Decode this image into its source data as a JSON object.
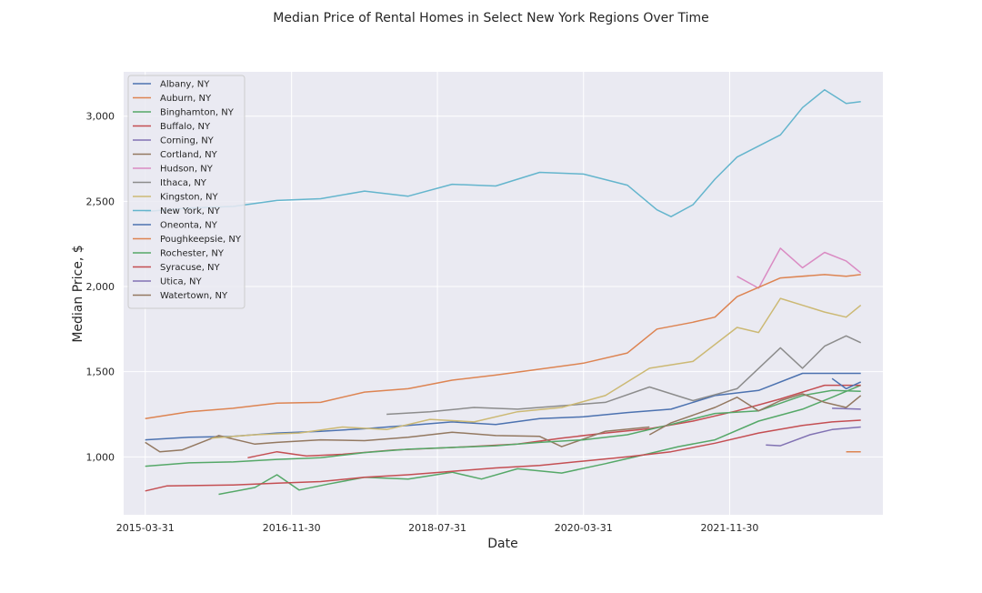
{
  "chart_data": {
    "type": "line",
    "title": "Median Price of Rental Homes in Select New York Regions Over Time",
    "xlabel": "Date",
    "ylabel": "Median Price, $",
    "x_ticks": [
      "2015-03-31",
      "2016-11-30",
      "2018-07-31",
      "2020-03-31",
      "2021-11-30"
    ],
    "y_ticks": [
      1000,
      1500,
      2000,
      2500,
      3000
    ],
    "y_tick_labels": [
      "1,000",
      "1,500",
      "2,000",
      "2,500",
      "3,000"
    ],
    "xlim": [
      "2014-12-31",
      "2023-08-31"
    ],
    "ylim": [
      660,
      3260
    ],
    "grid": true,
    "legend_position": "upper-left",
    "series": [
      {
        "name": "Albany, NY",
        "color": "#4c72b0",
        "points": [
          [
            "2015-03-31",
            1100
          ],
          [
            "2015-09-30",
            1115
          ],
          [
            "2016-03-31",
            1120
          ],
          [
            "2016-09-30",
            1140
          ],
          [
            "2017-03-31",
            1150
          ],
          [
            "2017-09-30",
            1165
          ],
          [
            "2018-03-31",
            1185
          ],
          [
            "2018-09-30",
            1205
          ],
          [
            "2019-03-31",
            1190
          ],
          [
            "2019-09-30",
            1225
          ],
          [
            "2020-03-31",
            1235
          ],
          [
            "2020-09-30",
            1260
          ],
          [
            "2021-03-31",
            1280
          ],
          [
            "2021-09-30",
            1360
          ],
          [
            "2022-03-31",
            1390
          ],
          [
            "2022-09-30",
            1490
          ],
          [
            "2023-01-31",
            1490
          ],
          [
            "2023-05-31",
            1490
          ]
        ]
      },
      {
        "name": "Auburn, NY",
        "color": "#dd8452",
        "points": [
          [
            "2023-03-31",
            1030
          ],
          [
            "2023-05-31",
            1030
          ]
        ]
      },
      {
        "name": "Binghamton, NY",
        "color": "#55a868",
        "points": [
          [
            "2016-01-31",
            780
          ],
          [
            "2016-06-30",
            820
          ],
          [
            "2016-09-30",
            895
          ],
          [
            "2016-12-31",
            805
          ],
          [
            "2017-04-30",
            840
          ],
          [
            "2017-09-30",
            880
          ],
          [
            "2018-03-31",
            870
          ],
          [
            "2018-09-30",
            910
          ],
          [
            "2019-01-31",
            870
          ],
          [
            "2019-06-30",
            930
          ],
          [
            "2019-12-31",
            905
          ],
          [
            "2020-06-30",
            960
          ],
          [
            "2020-12-31",
            1020
          ],
          [
            "2021-04-30",
            1060
          ],
          [
            "2021-09-30",
            1100
          ],
          [
            "2022-03-31",
            1210
          ],
          [
            "2022-09-30",
            1280
          ],
          [
            "2023-01-31",
            1350
          ],
          [
            "2023-05-31",
            1420
          ]
        ]
      },
      {
        "name": "Buffalo, NY",
        "color": "#c44e52",
        "points": [
          [
            "2016-05-31",
            995
          ],
          [
            "2016-09-30",
            1030
          ],
          [
            "2017-01-31",
            1005
          ],
          [
            "2017-06-30",
            1015
          ],
          [
            "2018-01-31",
            1040
          ],
          [
            "2018-09-30",
            1055
          ],
          [
            "2019-06-30",
            1075
          ],
          [
            "2019-12-31",
            1110
          ],
          [
            "2020-06-30",
            1140
          ],
          [
            "2020-12-31",
            1165
          ],
          [
            "2021-06-30",
            1210
          ],
          [
            "2021-12-31",
            1270
          ],
          [
            "2022-06-30",
            1340
          ],
          [
            "2022-12-31",
            1420
          ],
          [
            "2023-05-31",
            1420
          ]
        ]
      },
      {
        "name": "Corning, NY",
        "color": "#8172b3",
        "points": [
          [
            "2022-04-30",
            1070
          ],
          [
            "2022-06-30",
            1065
          ],
          [
            "2022-10-31",
            1130
          ],
          [
            "2023-01-31",
            1160
          ],
          [
            "2023-05-31",
            1175
          ]
        ]
      },
      {
        "name": "Cortland, NY",
        "color": "#937860",
        "points": [
          [
            "2015-03-31",
            1085
          ],
          [
            "2015-05-31",
            1030
          ],
          [
            "2015-08-31",
            1040
          ],
          [
            "2016-01-31",
            1125
          ],
          [
            "2016-06-30",
            1075
          ],
          [
            "2016-09-30",
            1085
          ],
          [
            "2017-03-31",
            1100
          ],
          [
            "2017-09-30",
            1095
          ],
          [
            "2018-03-31",
            1115
          ],
          [
            "2018-09-30",
            1145
          ],
          [
            "2019-03-31",
            1125
          ],
          [
            "2019-09-30",
            1120
          ],
          [
            "2019-12-31",
            1060
          ],
          [
            "2020-06-30",
            1150
          ],
          [
            "2020-12-31",
            1175
          ]
        ]
      },
      {
        "name": "Hudson, NY",
        "color": "#da8bc3",
        "points": [
          [
            "2021-12-31",
            2060
          ],
          [
            "2022-03-31",
            1990
          ],
          [
            "2022-06-30",
            2225
          ],
          [
            "2022-09-30",
            2110
          ],
          [
            "2022-12-31",
            2200
          ],
          [
            "2023-03-31",
            2150
          ],
          [
            "2023-05-31",
            2080
          ]
        ]
      },
      {
        "name": "Ithaca, NY",
        "color": "#8c8c8c",
        "points": [
          [
            "2017-12-31",
            1250
          ],
          [
            "2018-06-30",
            1265
          ],
          [
            "2018-12-31",
            1290
          ],
          [
            "2019-06-30",
            1280
          ],
          [
            "2019-12-31",
            1300
          ],
          [
            "2020-06-30",
            1320
          ],
          [
            "2020-12-31",
            1410
          ],
          [
            "2021-06-30",
            1330
          ],
          [
            "2021-12-31",
            1400
          ],
          [
            "2022-06-30",
            1640
          ],
          [
            "2022-09-30",
            1520
          ],
          [
            "2022-12-31",
            1650
          ],
          [
            "2023-03-31",
            1710
          ],
          [
            "2023-05-31",
            1670
          ]
        ]
      },
      {
        "name": "Kingston, NY",
        "color": "#ccb974",
        "points": [
          [
            "2015-12-31",
            1110
          ],
          [
            "2016-06-30",
            1130
          ],
          [
            "2016-12-31",
            1140
          ],
          [
            "2017-06-30",
            1175
          ],
          [
            "2017-12-31",
            1160
          ],
          [
            "2018-06-30",
            1220
          ],
          [
            "2018-12-31",
            1205
          ],
          [
            "2019-06-30",
            1265
          ],
          [
            "2019-12-31",
            1290
          ],
          [
            "2020-06-30",
            1360
          ],
          [
            "2020-12-31",
            1520
          ],
          [
            "2021-06-30",
            1560
          ],
          [
            "2021-12-31",
            1760
          ],
          [
            "2022-03-31",
            1730
          ],
          [
            "2022-06-30",
            1930
          ],
          [
            "2022-12-31",
            1850
          ],
          [
            "2023-03-31",
            1820
          ],
          [
            "2023-05-31",
            1890
          ]
        ]
      },
      {
        "name": "New York, NY",
        "color": "#64b5cd",
        "points": [
          [
            "2015-03-31",
            2440
          ],
          [
            "2015-09-30",
            2460
          ],
          [
            "2016-03-31",
            2470
          ],
          [
            "2016-09-30",
            2505
          ],
          [
            "2017-03-31",
            2515
          ],
          [
            "2017-09-30",
            2560
          ],
          [
            "2018-03-31",
            2530
          ],
          [
            "2018-09-30",
            2600
          ],
          [
            "2019-03-31",
            2590
          ],
          [
            "2019-09-30",
            2670
          ],
          [
            "2020-03-31",
            2660
          ],
          [
            "2020-09-30",
            2595
          ],
          [
            "2021-01-31",
            2450
          ],
          [
            "2021-03-31",
            2410
          ],
          [
            "2021-06-30",
            2480
          ],
          [
            "2021-09-30",
            2630
          ],
          [
            "2021-12-31",
            2760
          ],
          [
            "2022-06-30",
            2890
          ],
          [
            "2022-09-30",
            3050
          ],
          [
            "2022-12-31",
            3155
          ],
          [
            "2023-03-31",
            3075
          ],
          [
            "2023-05-31",
            3085
          ]
        ]
      },
      {
        "name": "Oneonta, NY",
        "color": "#4c72b0",
        "points": [
          [
            "2023-01-31",
            1460
          ],
          [
            "2023-03-31",
            1400
          ],
          [
            "2023-05-31",
            1440
          ]
        ]
      },
      {
        "name": "Poughkeepsie, NY",
        "color": "#dd8452",
        "points": [
          [
            "2015-03-31",
            1225
          ],
          [
            "2015-09-30",
            1265
          ],
          [
            "2016-03-31",
            1285
          ],
          [
            "2016-09-30",
            1315
          ],
          [
            "2017-03-31",
            1320
          ],
          [
            "2017-09-30",
            1380
          ],
          [
            "2018-03-31",
            1400
          ],
          [
            "2018-09-30",
            1450
          ],
          [
            "2019-03-31",
            1480
          ],
          [
            "2019-09-30",
            1515
          ],
          [
            "2020-03-31",
            1550
          ],
          [
            "2020-09-30",
            1610
          ],
          [
            "2021-01-31",
            1750
          ],
          [
            "2021-06-30",
            1790
          ],
          [
            "2021-09-30",
            1820
          ],
          [
            "2021-12-31",
            1940
          ],
          [
            "2022-06-30",
            2050
          ],
          [
            "2022-12-31",
            2070
          ],
          [
            "2023-03-31",
            2060
          ],
          [
            "2023-05-31",
            2070
          ]
        ]
      },
      {
        "name": "Rochester, NY",
        "color": "#55a868",
        "points": [
          [
            "2015-03-31",
            945
          ],
          [
            "2015-09-30",
            965
          ],
          [
            "2016-03-31",
            970
          ],
          [
            "2016-09-30",
            985
          ],
          [
            "2017-03-31",
            995
          ],
          [
            "2017-09-30",
            1025
          ],
          [
            "2018-03-31",
            1045
          ],
          [
            "2018-09-30",
            1055
          ],
          [
            "2019-03-31",
            1065
          ],
          [
            "2019-09-30",
            1085
          ],
          [
            "2020-03-31",
            1100
          ],
          [
            "2020-09-30",
            1130
          ],
          [
            "2021-03-31",
            1190
          ],
          [
            "2021-09-30",
            1255
          ],
          [
            "2022-03-31",
            1270
          ],
          [
            "2022-09-30",
            1360
          ],
          [
            "2023-01-31",
            1390
          ],
          [
            "2023-05-31",
            1385
          ]
        ]
      },
      {
        "name": "Syracuse, NY",
        "color": "#c44e52",
        "points": [
          [
            "2015-03-31",
            800
          ],
          [
            "2015-06-30",
            830
          ],
          [
            "2016-03-31",
            835
          ],
          [
            "2016-09-30",
            845
          ],
          [
            "2017-03-31",
            855
          ],
          [
            "2017-09-30",
            880
          ],
          [
            "2018-03-31",
            895
          ],
          [
            "2018-09-30",
            915
          ],
          [
            "2019-03-31",
            935
          ],
          [
            "2019-09-30",
            950
          ],
          [
            "2020-03-31",
            975
          ],
          [
            "2020-09-30",
            1000
          ],
          [
            "2021-03-31",
            1030
          ],
          [
            "2021-09-30",
            1080
          ],
          [
            "2022-03-31",
            1140
          ],
          [
            "2022-09-30",
            1185
          ],
          [
            "2023-01-31",
            1205
          ],
          [
            "2023-05-31",
            1215
          ]
        ]
      },
      {
        "name": "Utica, NY",
        "color": "#8172b3",
        "points": [
          [
            "2023-01-31",
            1285
          ],
          [
            "2023-05-31",
            1280
          ]
        ]
      },
      {
        "name": "Watertown, NY",
        "color": "#937860",
        "points": [
          [
            "2020-12-31",
            1130
          ],
          [
            "2021-03-31",
            1200
          ],
          [
            "2021-09-30",
            1290
          ],
          [
            "2021-12-31",
            1350
          ],
          [
            "2022-03-31",
            1270
          ],
          [
            "2022-06-30",
            1330
          ],
          [
            "2022-09-30",
            1370
          ],
          [
            "2022-12-31",
            1320
          ],
          [
            "2023-03-31",
            1290
          ],
          [
            "2023-05-31",
            1360
          ]
        ]
      }
    ]
  }
}
